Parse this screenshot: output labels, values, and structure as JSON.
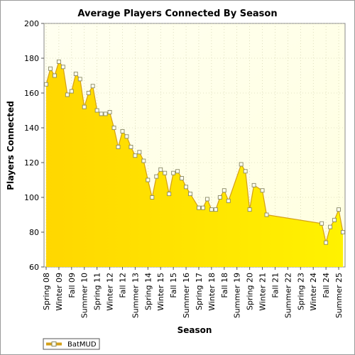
{
  "chart_data": {
    "type": "area",
    "title": "Average Players Connected By Season",
    "xlabel": "Season",
    "ylabel": "Players Connected",
    "ylim": [
      60,
      200
    ],
    "yticks": [
      60,
      80,
      100,
      120,
      140,
      160,
      180,
      200
    ],
    "grid": true,
    "legend_position": "bottom-left",
    "colors": {
      "fill": "#ffd700",
      "line": "#d4a017",
      "marker_fill": "#ffffee",
      "marker_stroke": "#888866",
      "plot_bg": "#ffffee"
    },
    "series": [
      {
        "name": "BatMUD",
        "points": [
          {
            "x": 0,
            "y": 165
          },
          {
            "x": 1,
            "y": 174
          },
          {
            "x": 2,
            "y": 170
          },
          {
            "x": 3,
            "y": 178
          },
          {
            "x": 4,
            "y": 175
          },
          {
            "x": 5,
            "y": 159
          },
          {
            "x": 6,
            "y": 161
          },
          {
            "x": 7,
            "y": 171
          },
          {
            "x": 8,
            "y": 168
          },
          {
            "x": 9,
            "y": 152
          },
          {
            "x": 10,
            "y": 160
          },
          {
            "x": 11,
            "y": 164
          },
          {
            "x": 12,
            "y": 150
          },
          {
            "x": 13,
            "y": 148
          },
          {
            "x": 14,
            "y": 148
          },
          {
            "x": 15,
            "y": 149
          },
          {
            "x": 16,
            "y": 140
          },
          {
            "x": 17,
            "y": 129
          },
          {
            "x": 18,
            "y": 138
          },
          {
            "x": 19,
            "y": 135
          },
          {
            "x": 20,
            "y": 129
          },
          {
            "x": 21,
            "y": 124
          },
          {
            "x": 22,
            "y": 126
          },
          {
            "x": 23,
            "y": 121
          },
          {
            "x": 24,
            "y": 110
          },
          {
            "x": 25,
            "y": 100
          },
          {
            "x": 26,
            "y": 112
          },
          {
            "x": 27,
            "y": 116
          },
          {
            "x": 28,
            "y": 114
          },
          {
            "x": 29,
            "y": 102
          },
          {
            "x": 30,
            "y": 114
          },
          {
            "x": 31,
            "y": 115
          },
          {
            "x": 32,
            "y": 111
          },
          {
            "x": 33,
            "y": 106
          },
          {
            "x": 34,
            "y": 102
          },
          {
            "x": 36,
            "y": 94
          },
          {
            "x": 37,
            "y": 94
          },
          {
            "x": 38,
            "y": 99
          },
          {
            "x": 39,
            "y": 93
          },
          {
            "x": 40,
            "y": 93
          },
          {
            "x": 41,
            "y": 100
          },
          {
            "x": 42,
            "y": 104
          },
          {
            "x": 43,
            "y": 98
          },
          {
            "x": 46,
            "y": 119
          },
          {
            "x": 47,
            "y": 115
          },
          {
            "x": 48,
            "y": 93
          },
          {
            "x": 49,
            "y": 107
          },
          {
            "x": 51,
            "y": 104
          },
          {
            "x": 52,
            "y": 90
          },
          {
            "x": 65,
            "y": 85
          },
          {
            "x": 66,
            "y": 74
          },
          {
            "x": 67,
            "y": 83
          },
          {
            "x": 68,
            "y": 87
          },
          {
            "x": 69,
            "y": 93
          },
          {
            "x": 70,
            "y": 80
          }
        ]
      }
    ],
    "x_tick_labels": [
      {
        "x": 0,
        "label": "Spring 08"
      },
      {
        "x": 3,
        "label": "Winter 09"
      },
      {
        "x": 6,
        "label": "Fall 09"
      },
      {
        "x": 9,
        "label": "Summer 10"
      },
      {
        "x": 12,
        "label": "Spring 11"
      },
      {
        "x": 15,
        "label": "Winter 12"
      },
      {
        "x": 18,
        "label": "Fall 12"
      },
      {
        "x": 21,
        "label": "Summer 13"
      },
      {
        "x": 24,
        "label": "Spring 14"
      },
      {
        "x": 27,
        "label": "Winter 15"
      },
      {
        "x": 30,
        "label": "Fall 15"
      },
      {
        "x": 33,
        "label": "Summer 16"
      },
      {
        "x": 36,
        "label": "Spring 17"
      },
      {
        "x": 39,
        "label": "Winter 18"
      },
      {
        "x": 42,
        "label": "Fall 18"
      },
      {
        "x": 45,
        "label": "Summer 19"
      },
      {
        "x": 48,
        "label": "Spring 20"
      },
      {
        "x": 51,
        "label": "Winter 21"
      },
      {
        "x": 54,
        "label": "Fall 21"
      },
      {
        "x": 57,
        "label": "Summer 22"
      },
      {
        "x": 60,
        "label": "Spring 23"
      },
      {
        "x": 63,
        "label": "Winter 24"
      },
      {
        "x": 66,
        "label": "Fall 24"
      },
      {
        "x": 69,
        "label": "Summer 25"
      }
    ]
  }
}
